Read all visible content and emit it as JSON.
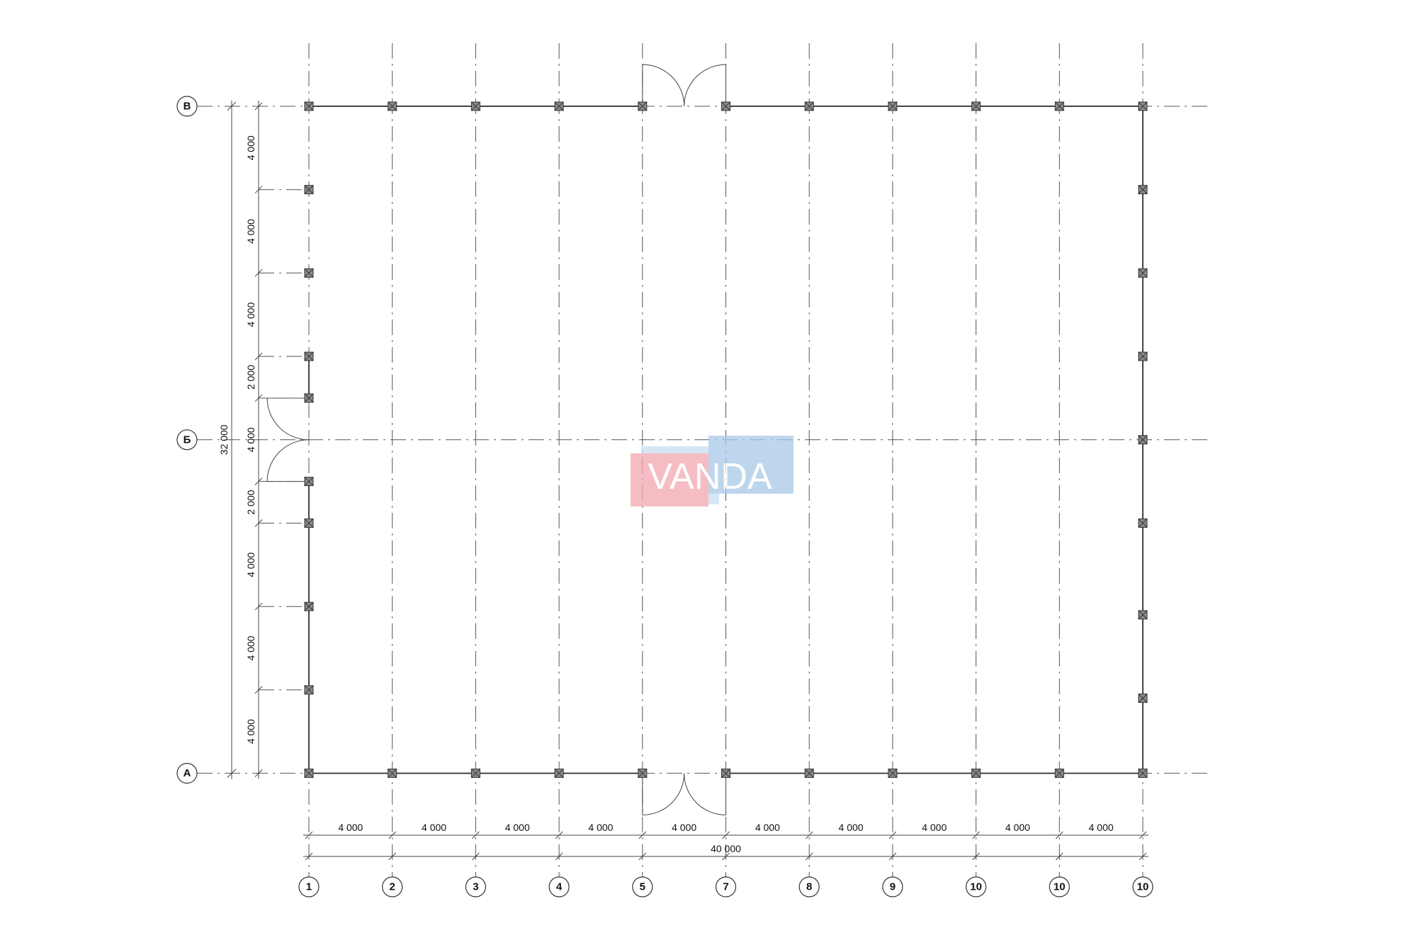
{
  "plan": {
    "column_axes": [
      "1",
      "2",
      "3",
      "4",
      "5",
      "7",
      "8",
      "9",
      "10",
      "10",
      "10"
    ],
    "row_axes": [
      "В",
      "Б",
      "А"
    ],
    "bottom_dimensions": [
      "4 000",
      "4 000",
      "4 000",
      "4 000",
      "4 000",
      "4 000",
      "4 000",
      "4 000",
      "4 000",
      "4 000"
    ],
    "bottom_total": "40 000",
    "left_dimensions": [
      "4 000",
      "4 000",
      "4 000",
      "2 000",
      "4 000",
      "2 000",
      "4 000",
      "4 000",
      "4 000"
    ],
    "left_total": "32 000",
    "colors": {
      "line": "#444444",
      "column_fill": "#8a8a8a",
      "logo_pink": "#f2a7b0",
      "logo_blue": "#a9c9e8"
    }
  },
  "watermark": {
    "logo_text": "VANDA"
  }
}
